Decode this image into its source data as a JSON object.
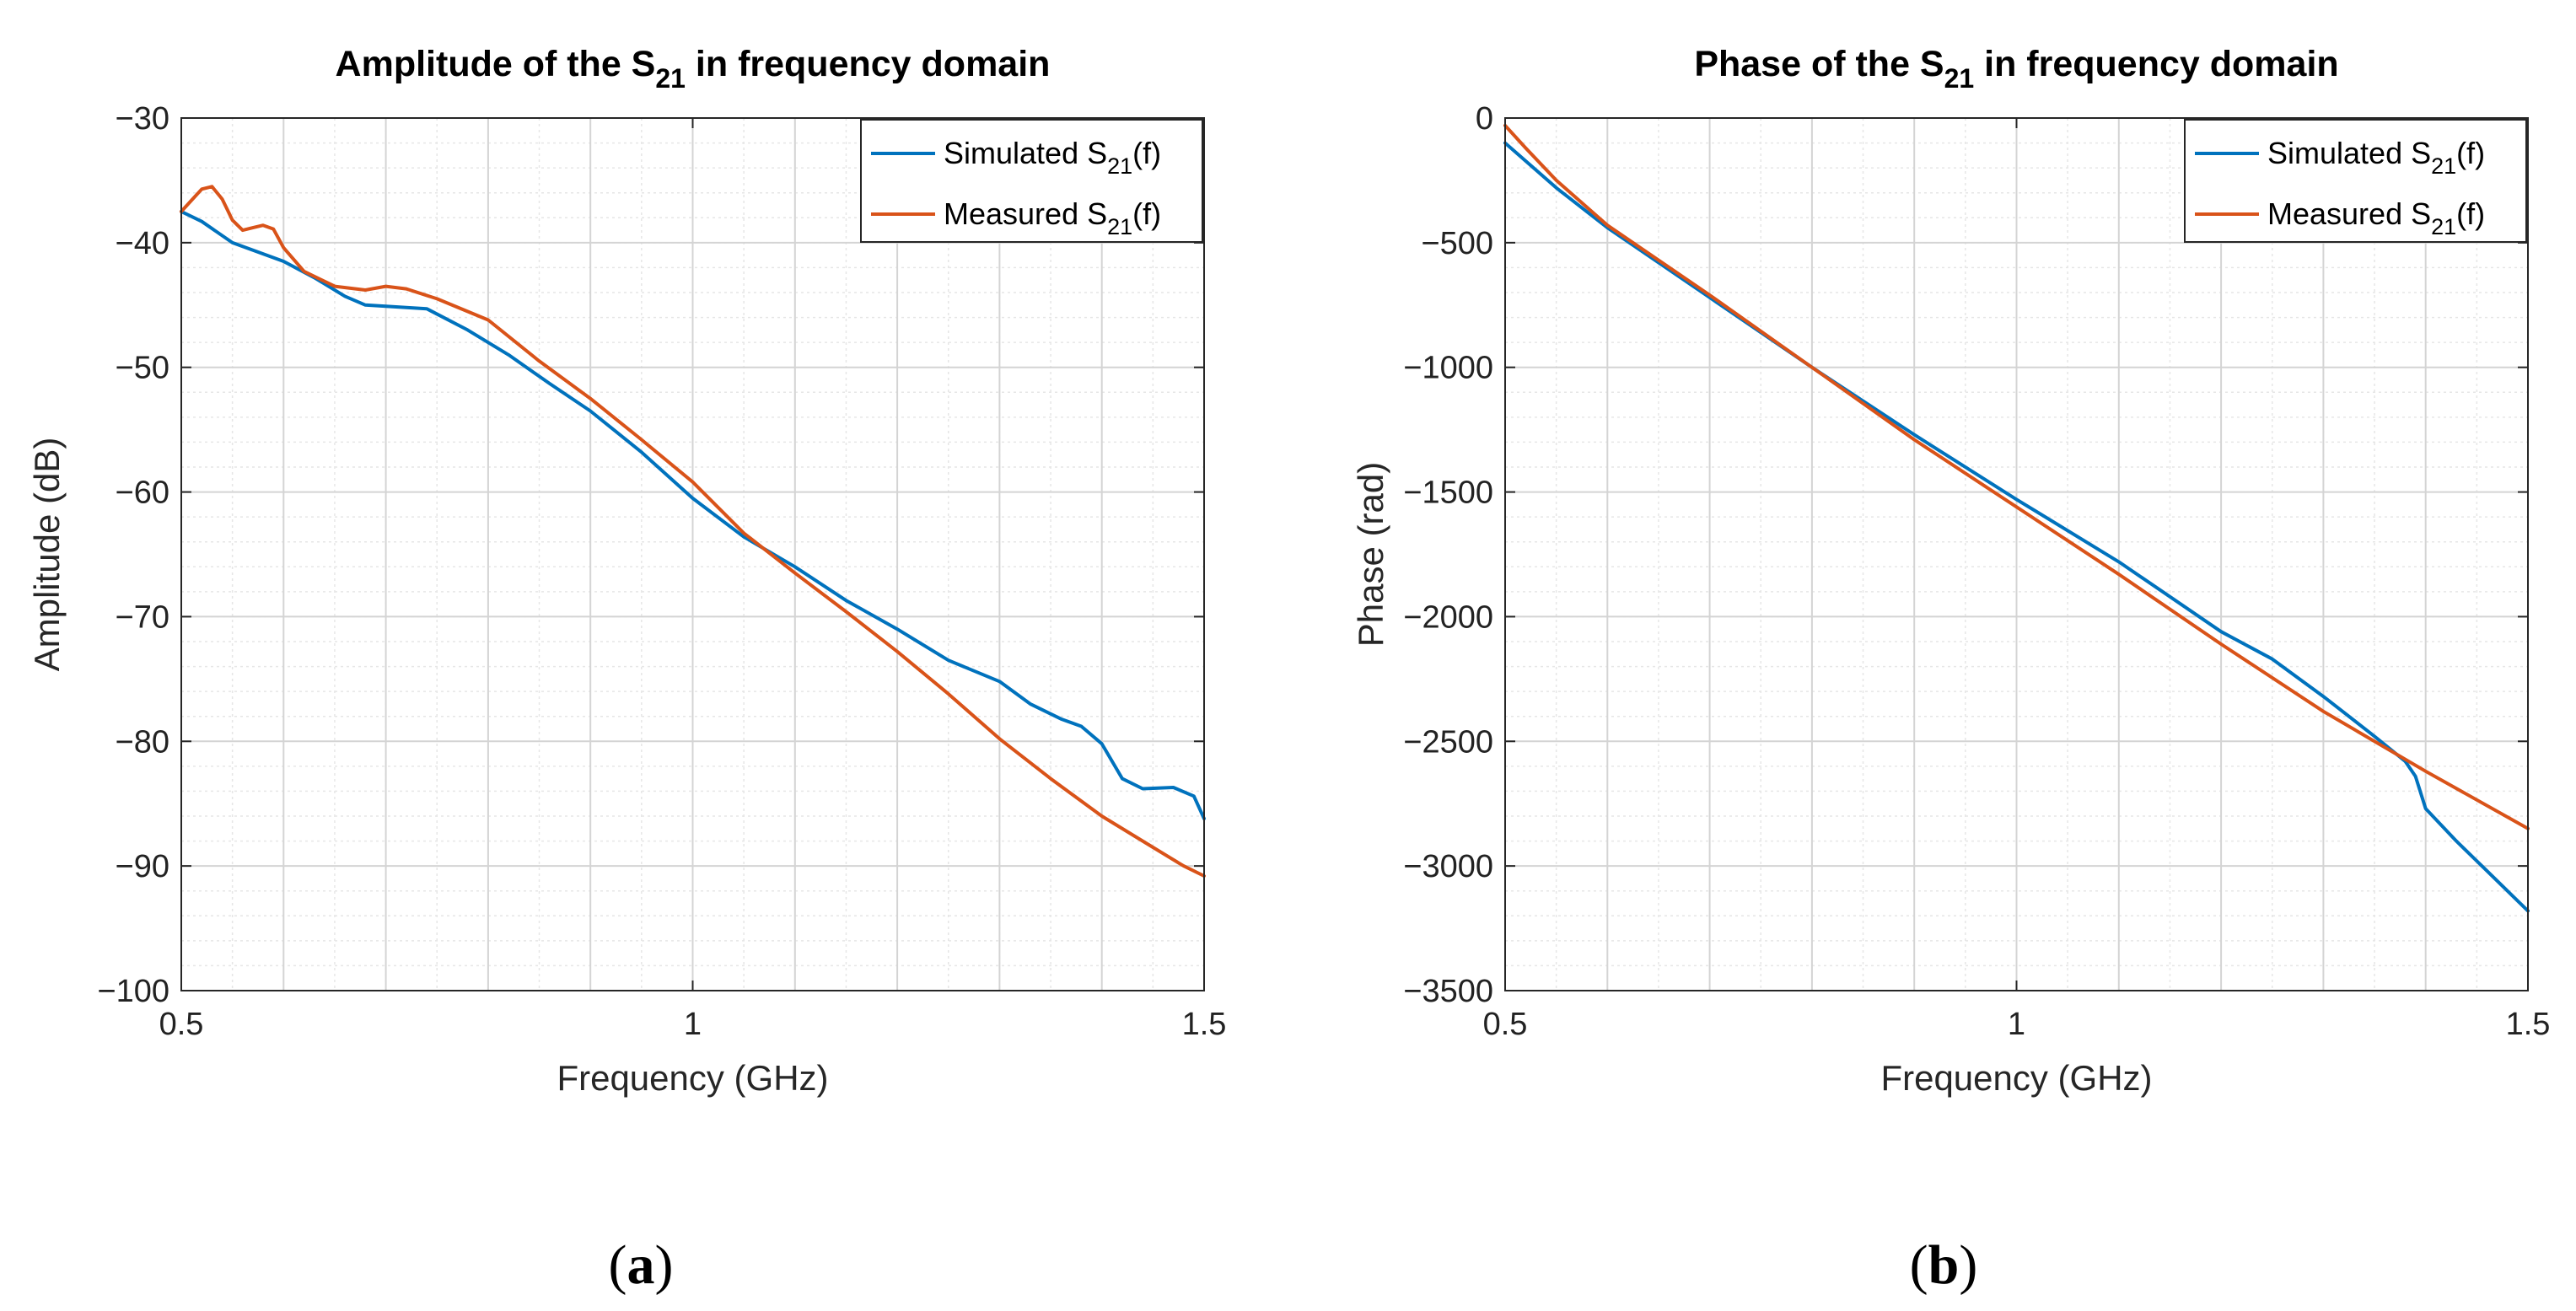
{
  "chart_data": [
    {
      "type": "line",
      "title": "Amplitude of the S",
      "title_sub": "21",
      "title_tail": " in frequency domain",
      "xlabel": "Frequency (GHz)",
      "ylabel": "Amplitude (dB)",
      "xlim": [
        0.5,
        1.5
      ],
      "ylim": [
        -100,
        -30
      ],
      "xticks": [
        0.5,
        1,
        1.5
      ],
      "xtick_labels": [
        "0.5",
        "1",
        "1.5"
      ],
      "yticks": [
        -100,
        -90,
        -80,
        -70,
        -60,
        -50,
        -40,
        -30
      ],
      "ytick_labels": [
        "−100",
        "−90",
        "−80",
        "−70",
        "−60",
        "−50",
        "−40",
        "−30"
      ],
      "grid": true,
      "legend_position": "top-right",
      "caption": "(a)",
      "series": [
        {
          "name": "Simulated S21(f)",
          "legend_label": "Simulated S",
          "legend_sub": "21",
          "legend_tail": "(f)",
          "color": "#0072BD",
          "x": [
            0.5,
            0.52,
            0.55,
            0.6,
            0.63,
            0.66,
            0.68,
            0.7,
            0.74,
            0.78,
            0.82,
            0.86,
            0.9,
            0.95,
            1.0,
            1.05,
            1.1,
            1.15,
            1.2,
            1.25,
            1.3,
            1.33,
            1.36,
            1.38,
            1.4,
            1.42,
            1.44,
            1.47,
            1.49,
            1.5
          ],
          "y": [
            -37.5,
            -38.3,
            -40.0,
            -41.5,
            -42.8,
            -44.3,
            -45.0,
            -45.1,
            -45.3,
            -47.0,
            -49.0,
            -51.3,
            -53.5,
            -56.8,
            -60.5,
            -63.6,
            -66.0,
            -68.7,
            -71.0,
            -73.5,
            -75.2,
            -77.0,
            -78.2,
            -78.8,
            -80.2,
            -83.0,
            -83.8,
            -83.7,
            -84.4,
            -86.2
          ]
        },
        {
          "name": "Measured S21(f)",
          "legend_label": "Measured S",
          "legend_sub": "21",
          "legend_tail": "(f)",
          "color": "#D95319",
          "x": [
            0.5,
            0.51,
            0.52,
            0.53,
            0.54,
            0.55,
            0.56,
            0.57,
            0.58,
            0.59,
            0.6,
            0.62,
            0.65,
            0.68,
            0.7,
            0.72,
            0.75,
            0.8,
            0.85,
            0.9,
            0.95,
            1.0,
            1.05,
            1.1,
            1.15,
            1.2,
            1.25,
            1.3,
            1.35,
            1.4,
            1.45,
            1.48,
            1.5
          ],
          "y": [
            -37.5,
            -36.6,
            -35.7,
            -35.5,
            -36.5,
            -38.2,
            -39.0,
            -38.8,
            -38.6,
            -38.9,
            -40.4,
            -42.3,
            -43.5,
            -43.8,
            -43.5,
            -43.7,
            -44.5,
            -46.2,
            -49.5,
            -52.5,
            -55.8,
            -59.2,
            -63.3,
            -66.5,
            -69.6,
            -72.8,
            -76.2,
            -79.8,
            -83.0,
            -86.0,
            -88.5,
            -90.0,
            -90.8
          ]
        }
      ]
    },
    {
      "type": "line",
      "title": "Phase of the S",
      "title_sub": "21",
      "title_tail": " in frequency domain",
      "xlabel": "Frequency (GHz)",
      "ylabel": "Phase (rad)",
      "xlim": [
        0.5,
        1.5
      ],
      "ylim": [
        -3500,
        0
      ],
      "xticks": [
        0.5,
        1,
        1.5
      ],
      "xtick_labels": [
        "0.5",
        "1",
        "1.5"
      ],
      "yticks": [
        -3500,
        -3000,
        -2500,
        -2000,
        -1500,
        -1000,
        -500,
        0
      ],
      "ytick_labels": [
        "−3500",
        "−3000",
        "−2500",
        "−2000",
        "−1500",
        "−1000",
        "−500",
        "0"
      ],
      "grid": true,
      "legend_position": "top-right",
      "caption": "(b)",
      "series": [
        {
          "name": "Simulated S21(f)",
          "legend_label": "Simulated S",
          "legend_sub": "21",
          "legend_tail": "(f)",
          "color": "#0072BD",
          "x": [
            0.5,
            0.55,
            0.6,
            0.7,
            0.8,
            0.9,
            1.0,
            1.1,
            1.2,
            1.25,
            1.3,
            1.35,
            1.38,
            1.39,
            1.4,
            1.43,
            1.46,
            1.5
          ],
          "y": [
            -100,
            -280,
            -440,
            -720,
            -1000,
            -1270,
            -1530,
            -1780,
            -2060,
            -2170,
            -2320,
            -2480,
            -2580,
            -2640,
            -2770,
            -2900,
            -3020,
            -3180
          ]
        },
        {
          "name": "Measured S21(f)",
          "legend_label": "Measured S",
          "legend_sub": "21",
          "legend_tail": "(f)",
          "color": "#D95319",
          "x": [
            0.5,
            0.52,
            0.55,
            0.6,
            0.7,
            0.8,
            0.9,
            1.0,
            1.1,
            1.2,
            1.3,
            1.4,
            1.5
          ],
          "y": [
            -30,
            -120,
            -250,
            -430,
            -710,
            -1000,
            -1290,
            -1560,
            -1830,
            -2110,
            -2380,
            -2620,
            -2850
          ]
        }
      ]
    }
  ]
}
